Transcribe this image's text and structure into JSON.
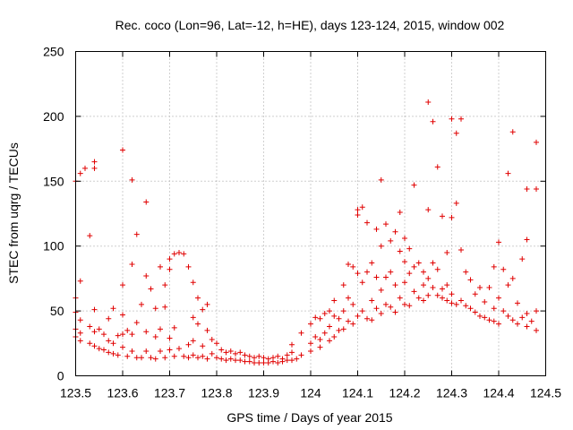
{
  "chart_data": {
    "type": "scatter",
    "title": "Rec. coco (Lon=96, Lat=-12, h=HE), days 123-124, 2015, window 002",
    "xlabel": "GPS time / Days of year 2015",
    "ylabel": "STEC from uqrg / TECUs",
    "xlim": [
      123.5,
      124.5
    ],
    "ylim": [
      0,
      250
    ],
    "xticks": [
      "123.5",
      "123.6",
      "123.7",
      "123.8",
      "123.9",
      "124",
      "124.1",
      "124.2",
      "124.3",
      "124.4",
      "124.5"
    ],
    "yticks": [
      "0",
      "50",
      "100",
      "150",
      "200",
      "250"
    ],
    "grid": true,
    "marker": "+",
    "color": "#e00000",
    "points": [
      [
        123.5,
        150
      ],
      [
        123.5,
        60
      ],
      [
        123.5,
        49
      ],
      [
        123.5,
        36
      ],
      [
        123.5,
        30
      ],
      [
        123.51,
        156
      ],
      [
        123.51,
        73
      ],
      [
        123.51,
        43
      ],
      [
        123.51,
        33
      ],
      [
        123.51,
        27
      ],
      [
        123.52,
        160
      ],
      [
        123.53,
        108
      ],
      [
        123.53,
        38
      ],
      [
        123.53,
        25
      ],
      [
        123.54,
        165
      ],
      [
        123.54,
        160
      ],
      [
        123.54,
        51
      ],
      [
        123.54,
        34
      ],
      [
        123.54,
        23
      ],
      [
        123.55,
        36
      ],
      [
        123.55,
        21
      ],
      [
        123.56,
        32
      ],
      [
        123.56,
        20
      ],
      [
        123.57,
        44
      ],
      [
        123.57,
        27
      ],
      [
        123.57,
        18
      ],
      [
        123.58,
        52
      ],
      [
        123.58,
        25
      ],
      [
        123.58,
        17
      ],
      [
        123.59,
        31
      ],
      [
        123.59,
        16
      ],
      [
        123.6,
        174
      ],
      [
        123.6,
        70
      ],
      [
        123.6,
        47
      ],
      [
        123.6,
        32
      ],
      [
        123.6,
        22
      ],
      [
        123.61,
        35
      ],
      [
        123.61,
        15
      ],
      [
        123.62,
        151
      ],
      [
        123.62,
        86
      ],
      [
        123.62,
        32
      ],
      [
        123.62,
        19
      ],
      [
        123.63,
        109
      ],
      [
        123.63,
        41
      ],
      [
        123.63,
        14
      ],
      [
        123.64,
        55
      ],
      [
        123.64,
        14
      ],
      [
        123.65,
        134
      ],
      [
        123.65,
        77
      ],
      [
        123.65,
        34
      ],
      [
        123.65,
        19
      ],
      [
        123.66,
        67
      ],
      [
        123.66,
        14
      ],
      [
        123.67,
        52
      ],
      [
        123.67,
        30
      ],
      [
        123.67,
        13
      ],
      [
        123.68,
        84
      ],
      [
        123.68,
        36
      ],
      [
        123.68,
        19
      ],
      [
        123.69,
        70
      ],
      [
        123.69,
        53
      ],
      [
        123.69,
        14
      ],
      [
        123.7,
        90
      ],
      [
        123.7,
        82
      ],
      [
        123.7,
        29
      ],
      [
        123.7,
        20
      ],
      [
        123.71,
        94
      ],
      [
        123.71,
        37
      ],
      [
        123.71,
        15
      ],
      [
        123.72,
        95
      ],
      [
        123.72,
        21
      ],
      [
        123.73,
        94
      ],
      [
        123.73,
        15
      ],
      [
        123.74,
        84
      ],
      [
        123.74,
        24
      ],
      [
        123.74,
        14
      ],
      [
        123.75,
        72
      ],
      [
        123.75,
        45
      ],
      [
        123.75,
        27
      ],
      [
        123.75,
        16
      ],
      [
        123.76,
        60
      ],
      [
        123.76,
        40
      ],
      [
        123.76,
        14
      ],
      [
        123.77,
        51
      ],
      [
        123.77,
        23
      ],
      [
        123.77,
        15
      ],
      [
        123.78,
        55
      ],
      [
        123.78,
        35
      ],
      [
        123.78,
        13
      ],
      [
        123.79,
        28
      ],
      [
        123.79,
        17
      ],
      [
        123.8,
        25
      ],
      [
        123.8,
        14
      ],
      [
        123.81,
        20
      ],
      [
        123.81,
        13
      ],
      [
        123.82,
        18
      ],
      [
        123.82,
        12
      ],
      [
        123.83,
        19
      ],
      [
        123.83,
        13
      ],
      [
        123.84,
        17
      ],
      [
        123.84,
        12
      ],
      [
        123.85,
        18
      ],
      [
        123.85,
        12
      ],
      [
        123.86,
        16
      ],
      [
        123.86,
        11
      ],
      [
        123.87,
        15
      ],
      [
        123.87,
        11
      ],
      [
        123.88,
        14
      ],
      [
        123.88,
        10
      ],
      [
        123.89,
        15
      ],
      [
        123.89,
        10
      ],
      [
        123.9,
        14
      ],
      [
        123.9,
        10
      ],
      [
        123.91,
        13
      ],
      [
        123.91,
        10
      ],
      [
        123.92,
        14
      ],
      [
        123.92,
        11
      ],
      [
        123.93,
        15
      ],
      [
        123.93,
        10
      ],
      [
        123.94,
        13
      ],
      [
        123.94,
        11
      ],
      [
        123.95,
        16
      ],
      [
        123.95,
        12
      ],
      [
        123.96,
        24
      ],
      [
        123.96,
        18
      ],
      [
        123.96,
        12
      ],
      [
        123.97,
        13
      ],
      [
        123.98,
        33
      ],
      [
        123.98,
        16
      ],
      [
        124.0,
        40
      ],
      [
        124.0,
        25
      ],
      [
        124.0,
        19
      ],
      [
        124.01,
        45
      ],
      [
        124.01,
        30
      ],
      [
        124.02,
        44
      ],
      [
        124.02,
        28
      ],
      [
        124.02,
        22
      ],
      [
        124.03,
        48
      ],
      [
        124.03,
        33
      ],
      [
        124.04,
        50
      ],
      [
        124.04,
        38
      ],
      [
        124.04,
        27
      ],
      [
        124.05,
        58
      ],
      [
        124.05,
        46
      ],
      [
        124.05,
        30
      ],
      [
        124.06,
        44
      ],
      [
        124.06,
        35
      ],
      [
        124.07,
        70
      ],
      [
        124.07,
        50
      ],
      [
        124.07,
        36
      ],
      [
        124.08,
        86
      ],
      [
        124.08,
        60
      ],
      [
        124.08,
        42
      ],
      [
        124.09,
        84
      ],
      [
        124.09,
        55
      ],
      [
        124.09,
        40
      ],
      [
        124.1,
        128
      ],
      [
        124.1,
        124
      ],
      [
        124.1,
        79
      ],
      [
        124.1,
        46
      ],
      [
        124.11,
        130
      ],
      [
        124.11,
        72
      ],
      [
        124.11,
        50
      ],
      [
        124.12,
        118
      ],
      [
        124.12,
        80
      ],
      [
        124.12,
        44
      ],
      [
        124.13,
        87
      ],
      [
        124.13,
        58
      ],
      [
        124.13,
        43
      ],
      [
        124.14,
        113
      ],
      [
        124.14,
        76
      ],
      [
        124.14,
        52
      ],
      [
        124.15,
        151
      ],
      [
        124.15,
        100
      ],
      [
        124.15,
        66
      ],
      [
        124.15,
        48
      ],
      [
        124.16,
        117
      ],
      [
        124.16,
        76
      ],
      [
        124.16,
        55
      ],
      [
        124.17,
        104
      ],
      [
        124.17,
        80
      ],
      [
        124.17,
        53
      ],
      [
        124.18,
        111
      ],
      [
        124.18,
        70
      ],
      [
        124.18,
        49
      ],
      [
        124.19,
        126
      ],
      [
        124.19,
        96
      ],
      [
        124.19,
        60
      ],
      [
        124.2,
        106
      ],
      [
        124.2,
        88
      ],
      [
        124.2,
        72
      ],
      [
        124.2,
        55
      ],
      [
        124.21,
        98
      ],
      [
        124.21,
        79
      ],
      [
        124.21,
        54
      ],
      [
        124.22,
        147
      ],
      [
        124.22,
        84
      ],
      [
        124.22,
        65
      ],
      [
        124.23,
        87
      ],
      [
        124.23,
        60
      ],
      [
        124.24,
        80
      ],
      [
        124.24,
        70
      ],
      [
        124.24,
        58
      ],
      [
        124.25,
        211
      ],
      [
        124.25,
        128
      ],
      [
        124.25,
        75
      ],
      [
        124.25,
        62
      ],
      [
        124.26,
        196
      ],
      [
        124.26,
        87
      ],
      [
        124.26,
        68
      ],
      [
        124.27,
        161
      ],
      [
        124.27,
        82
      ],
      [
        124.27,
        62
      ],
      [
        124.28,
        123
      ],
      [
        124.28,
        67
      ],
      [
        124.28,
        60
      ],
      [
        124.29,
        95
      ],
      [
        124.29,
        70
      ],
      [
        124.29,
        58
      ],
      [
        124.3,
        198
      ],
      [
        124.3,
        122
      ],
      [
        124.3,
        63
      ],
      [
        124.3,
        56
      ],
      [
        124.31,
        187
      ],
      [
        124.31,
        133
      ],
      [
        124.31,
        55
      ],
      [
        124.32,
        198
      ],
      [
        124.32,
        97
      ],
      [
        124.32,
        58
      ],
      [
        124.33,
        80
      ],
      [
        124.33,
        54
      ],
      [
        124.34,
        74
      ],
      [
        124.34,
        52
      ],
      [
        124.35,
        63
      ],
      [
        124.35,
        49
      ],
      [
        124.36,
        68
      ],
      [
        124.36,
        46
      ],
      [
        124.37,
        57
      ],
      [
        124.37,
        45
      ],
      [
        124.38,
        68
      ],
      [
        124.38,
        43
      ],
      [
        124.39,
        84
      ],
      [
        124.39,
        52
      ],
      [
        124.39,
        42
      ],
      [
        124.4,
        103
      ],
      [
        124.4,
        60
      ],
      [
        124.4,
        40
      ],
      [
        124.41,
        82
      ],
      [
        124.41,
        50
      ],
      [
        124.42,
        156
      ],
      [
        124.42,
        70
      ],
      [
        124.42,
        46
      ],
      [
        124.43,
        188
      ],
      [
        124.43,
        75
      ],
      [
        124.43,
        43
      ],
      [
        124.44,
        56
      ],
      [
        124.44,
        40
      ],
      [
        124.45,
        90
      ],
      [
        124.45,
        45
      ],
      [
        124.46,
        144
      ],
      [
        124.46,
        105
      ],
      [
        124.46,
        48
      ],
      [
        124.46,
        38
      ],
      [
        124.47,
        42
      ],
      [
        124.48,
        180
      ],
      [
        124.48,
        144
      ],
      [
        124.48,
        50
      ],
      [
        124.48,
        35
      ]
    ]
  }
}
